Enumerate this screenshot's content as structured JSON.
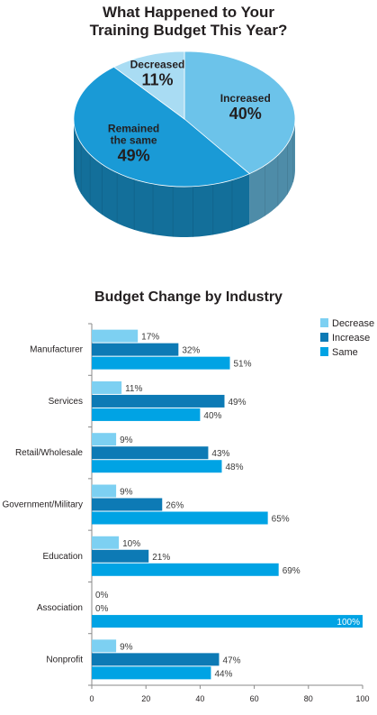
{
  "chart_data": [
    {
      "type": "pie",
      "title": "What Happened to Your Training Budget This Year?",
      "title_lines": [
        "What Happened to Your",
        "Training Budget This Year?"
      ],
      "slices": [
        {
          "label": "Increased",
          "label_lines": [
            "Increased"
          ],
          "value": 40,
          "value_label": "40%",
          "color": "#6cc3ea"
        },
        {
          "label": "Remained the same",
          "label_lines": [
            "Remained",
            "the same"
          ],
          "value": 49,
          "value_label": "49%",
          "color": "#1a9ad6"
        },
        {
          "label": "Decreased",
          "label_lines": [
            "Decreased"
          ],
          "value": 11,
          "value_label": "11%",
          "color": "#a9dcf3"
        }
      ],
      "style": "3d"
    },
    {
      "type": "bar",
      "orientation": "horizontal",
      "title": "Budget Change by Industry",
      "categories": [
        "Manufacturer",
        "Services",
        "Retail/Wholesale",
        "Government/Military",
        "Education",
        "Association",
        "Nonprofit"
      ],
      "series": [
        {
          "name": "Decrease",
          "color": "#7dd0f2",
          "values": [
            17,
            11,
            9,
            9,
            10,
            0,
            9
          ]
        },
        {
          "name": "Increase",
          "color": "#0d7ab5",
          "values": [
            32,
            49,
            43,
            26,
            21,
            0,
            47
          ]
        },
        {
          "name": "Same",
          "color": "#00a3e4",
          "values": [
            51,
            40,
            48,
            65,
            69,
            100,
            44
          ]
        }
      ],
      "xlim": [
        0,
        100
      ],
      "xticks": [
        "0",
        "20",
        "40",
        "60",
        "80",
        "100"
      ],
      "legend": "top-right"
    }
  ]
}
